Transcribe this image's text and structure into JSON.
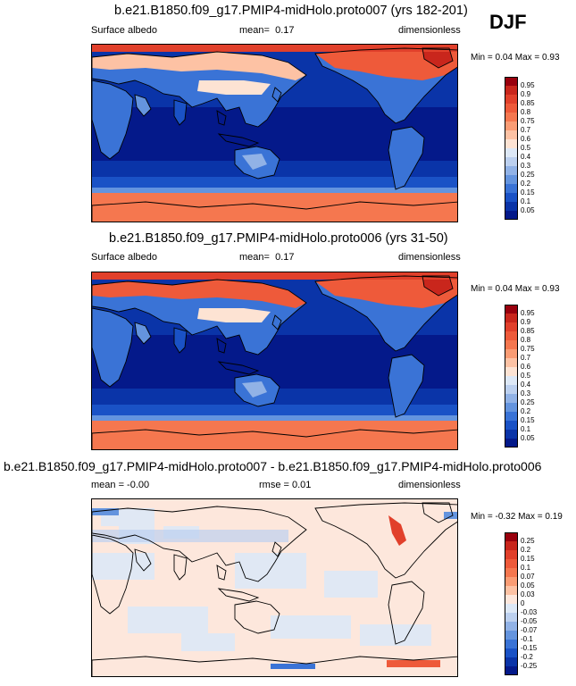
{
  "season": "DJF",
  "panels": [
    {
      "title": "b.e21.B1850.f09_g17.PMIP4-midHolo.proto007 (yrs 182-201)",
      "left_label": "Surface albedo",
      "mean_label": "mean=",
      "mean_value": "0.17",
      "units": "dimensionless",
      "minmax": "Min =  0.04 Max =  0.93",
      "map_kind": "albedo"
    },
    {
      "title": "b.e21.B1850.f09_g17.PMIP4-midHolo.proto006 (yrs 31-50)",
      "left_label": "Surface albedo",
      "mean_label": "mean=",
      "mean_value": "0.17",
      "units": "dimensionless",
      "minmax": "Min =  0.04 Max =  0.93",
      "map_kind": "albedo2"
    },
    {
      "title": "b.e21.B1850.f09_g17.PMIP4-midHolo.proto007 - b.e21.B1850.f09_g17.PMIP4-midHolo.proto006",
      "left_label": "mean =  -0.00",
      "mid_label": "rmse =  0.01",
      "units": "dimensionless",
      "minmax": "Min = -0.32 Max =  0.19",
      "map_kind": "diff"
    }
  ],
  "albedo_colorbar": {
    "ticks": [
      "0.95",
      "0.9",
      "0.85",
      "0.8",
      "0.75",
      "0.7",
      "0.6",
      "0.5",
      "0.4",
      "0.3",
      "0.25",
      "0.2",
      "0.15",
      "0.1",
      "0.05"
    ],
    "colors": [
      "#99000d",
      "#c9261c",
      "#e1402b",
      "#ee5a3a",
      "#f5774f",
      "#fa9c74",
      "#fdc2a4",
      "#fde3d3",
      "#dde8f6",
      "#bcd0ef",
      "#91b2e6",
      "#6494de",
      "#3a73d6",
      "#1a52c6",
      "#0a34a8",
      "#04198a"
    ]
  },
  "diff_colorbar": {
    "ticks": [
      "0.25",
      "0.2",
      "0.15",
      "0.1",
      "0.07",
      "0.05",
      "0.03",
      "0",
      "-0.03",
      "-0.05",
      "-0.07",
      "-0.1",
      "-0.15",
      "-0.2",
      "-0.25"
    ],
    "colors": [
      "#99000d",
      "#c9261c",
      "#e1402b",
      "#ee5a3a",
      "#f5774f",
      "#fa9c74",
      "#fdc2a4",
      "#fde7dc",
      "#dde8f6",
      "#bcd0ef",
      "#91b2e6",
      "#6494de",
      "#3a73d6",
      "#1a52c6",
      "#0a34a8",
      "#04198a"
    ]
  }
}
